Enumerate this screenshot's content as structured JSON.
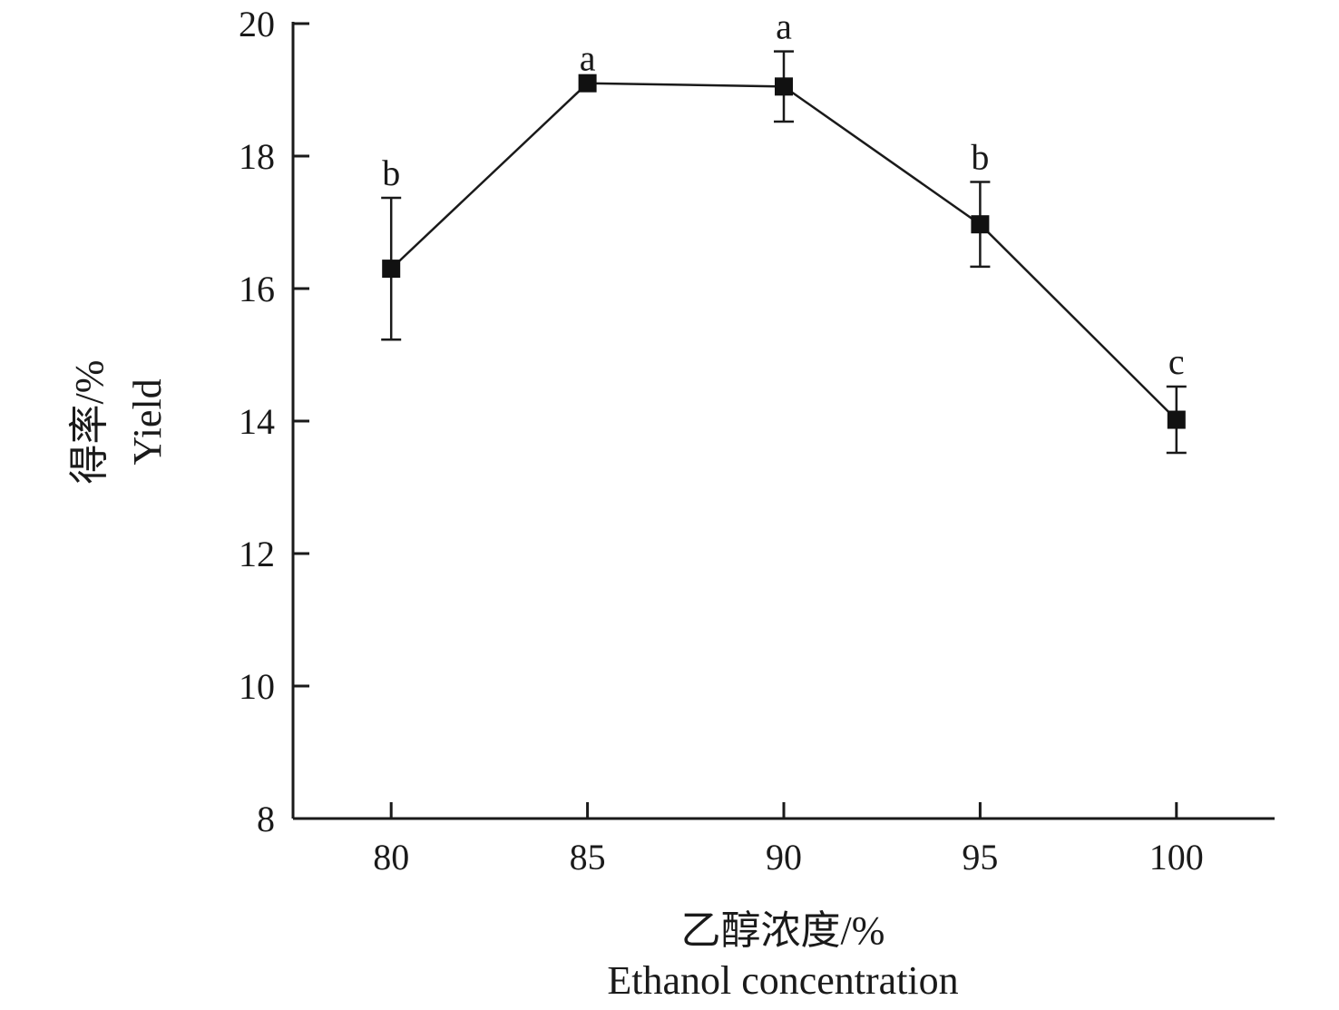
{
  "chart_data": {
    "type": "line",
    "title": "",
    "xlabel_cn": "乙醇浓度/%",
    "xlabel_en": "Ethanol concentration",
    "ylabel_cn": "得率/%",
    "ylabel_en": "Yield",
    "x": [
      80,
      85,
      90,
      95,
      100
    ],
    "xticks": [
      "80",
      "85",
      "90",
      "95",
      "100"
    ],
    "yticks": [
      "8",
      "10",
      "12",
      "14",
      "16",
      "18",
      "20"
    ],
    "ylim": [
      8,
      20
    ],
    "xlim": [
      77.5,
      102.5
    ],
    "series": [
      {
        "values": [
          16.3,
          19.1,
          19.05,
          16.97,
          14.02
        ],
        "error": [
          1.07,
          0.0,
          0.53,
          0.64,
          0.5
        ],
        "labels": [
          "b",
          "a",
          "a",
          "b",
          "c"
        ]
      }
    ],
    "grid": false,
    "legend": "none"
  }
}
